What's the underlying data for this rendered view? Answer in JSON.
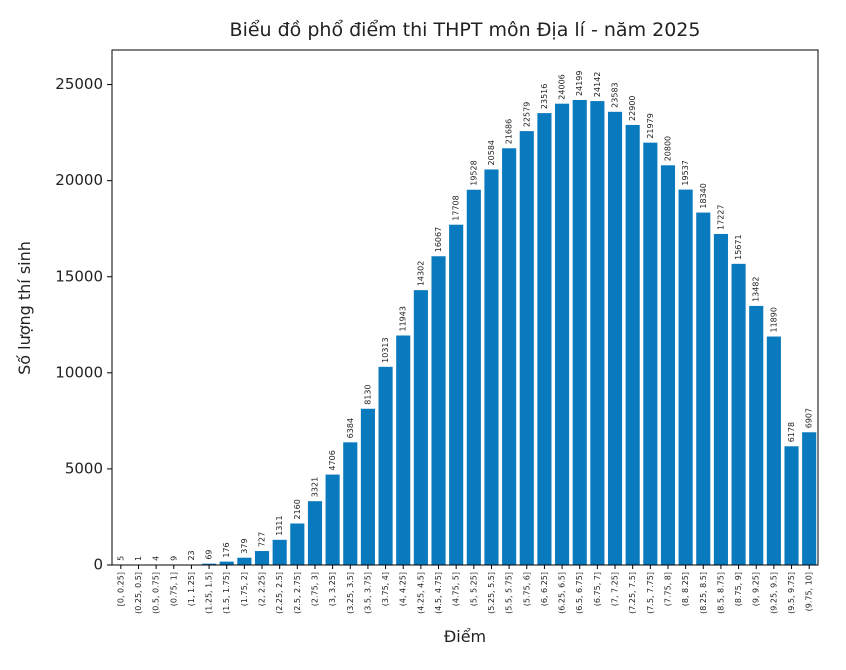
{
  "chart_data": {
    "type": "bar",
    "title": "Biểu đồ phổ điểm thi THPT môn Địa lí - năm 2025",
    "x_label": "Điểm",
    "y_label": "Số lượng thí sinh",
    "categories": [
      "[0, 0.25]",
      "(0.25, 0.5]",
      "(0.5, 0.75]",
      "(0.75, 1]",
      "(1, 1.25]",
      "(1.25, 1.5]",
      "(1.5, 1.75]",
      "(1.75, 2]",
      "(2, 2.25]",
      "(2.25, 2.5]",
      "(2.5, 2.75]",
      "(2.75, 3]",
      "(3, 3.25]",
      "(3.25, 3.5]",
      "(3.5, 3.75]",
      "(3.75, 4]",
      "(4, 4.25]",
      "(4.25, 4.5]",
      "(4.5, 4.75]",
      "(4.75, 5]",
      "(5, 5.25]",
      "(5.25, 5.5]",
      "(5.5, 5.75]",
      "(5.75, 6]",
      "(6, 6.25]",
      "(6.25, 6.5]",
      "(6.5, 6.75]",
      "(6.75, 7]",
      "(7, 7.25]",
      "(7.25, 7.5]",
      "(7.5, 7.75]",
      "(7.75, 8]",
      "(8, 8.25]",
      "(8.25, 8.5]",
      "(8.5, 8.75]",
      "(8.75, 9]",
      "(9, 9.25]",
      "(9.25, 9.5]",
      "(9.5, 9.75]",
      "(9.75, 10]"
    ],
    "values": [
      5,
      1,
      4,
      9,
      23,
      69,
      176,
      379,
      727,
      1311,
      2160,
      3321,
      4706,
      6384,
      8130,
      10313,
      11943,
      14302,
      16067,
      17708,
      19528,
      20584,
      21686,
      22579,
      23516,
      24006,
      24199,
      24142,
      23583,
      22900,
      21979,
      20800,
      19537,
      18340,
      17227,
      15671,
      13482,
      11890,
      6178,
      6907
    ],
    "color": "#0a7abf",
    "ylim": [
      0,
      26800
    ],
    "yticks": [
      0,
      5000,
      10000,
      15000,
      20000,
      25000
    ]
  }
}
